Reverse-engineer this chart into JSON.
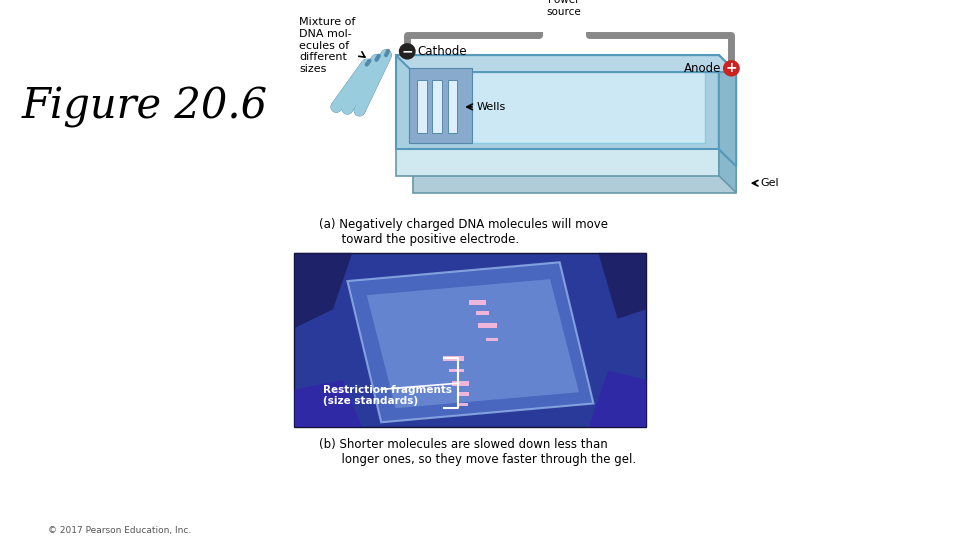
{
  "figure_label": "Figure 20.6",
  "caption_a": "(a) Negatively charged DNA molecules will move\n      toward the positive electrode.",
  "caption_b": "(b) Shorter molecules are slowed down less than\n      longer ones, so they move faster through the gel.",
  "label_mixture": "Mixture of\nDNA mol-\necules of\ndifferent\nsizes",
  "label_power": "Power\nsource",
  "label_cathode": "Cathode",
  "label_anode": "Anode",
  "label_wells": "Wells",
  "label_gel": "Gel",
  "label_restriction": "Restriction fragments\n(size standards)",
  "copyright": "© 2017 Pearson Education, Inc.",
  "bg_color": "#ffffff",
  "tray_outer_color": "#a8cfe0",
  "tray_inner_color": "#cce8f5",
  "tray_side_color": "#88b8cc",
  "tray_base_color": "#b0ccd8",
  "tray_base_front_color": "#d0e8f0",
  "power_box_fill": "#f0f0f0",
  "power_box_edge": "#555555",
  "wire_color": "#888888",
  "cathode_fill": "#222222",
  "anode_fill": "#cc2222",
  "tube_fill": "#99ccdd",
  "tube_edge": "#5588aa",
  "wells_fill": "#88aacc",
  "text_color": "#000000",
  "photo_dark_bg": "#2233aa",
  "photo_mid_color": "#3344bb",
  "photo_light_color": "#5566cc"
}
